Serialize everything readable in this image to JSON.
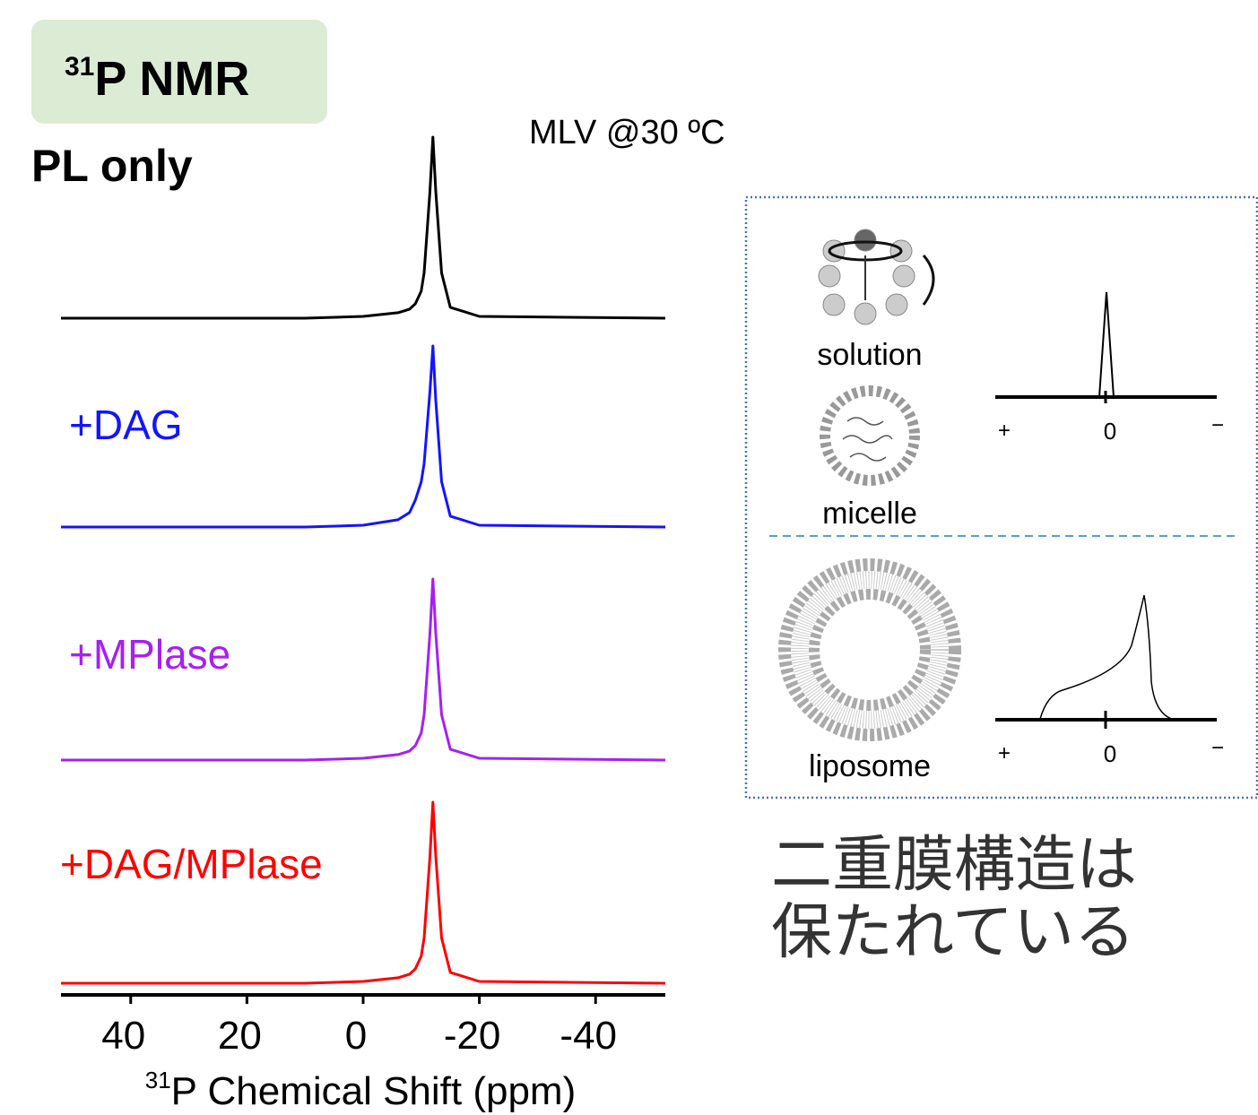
{
  "header": {
    "badge_sup": "31",
    "badge_text": "P NMR",
    "condition": "MLV @30 ºC"
  },
  "chart_data": {
    "type": "line",
    "x": [
      52,
      10,
      0,
      -6,
      -8,
      -9,
      -10,
      -10.5,
      -11.5,
      -12,
      -12.5,
      -13.5,
      -15,
      -20,
      -52
    ],
    "xlim": [
      52,
      -52
    ],
    "xticks": [
      40,
      20,
      0,
      -20,
      -40
    ],
    "xlabel_sup": "31",
    "xlabel": "P Chemical Shift (ppm)",
    "series": [
      {
        "name": "PL only",
        "color": "#000000",
        "values": [
          0,
          0,
          0.01,
          0.03,
          0.05,
          0.08,
          0.15,
          0.25,
          0.7,
          1,
          0.7,
          0.25,
          0.06,
          0.01,
          0
        ]
      },
      {
        "name": "+DAG",
        "color": "#1414ff",
        "values": [
          0,
          0,
          0.01,
          0.04,
          0.08,
          0.15,
          0.25,
          0.35,
          0.75,
          1,
          0.7,
          0.25,
          0.06,
          0.01,
          0
        ]
      },
      {
        "name": "+MPlase",
        "color": "#a620f0",
        "values": [
          0,
          0,
          0.01,
          0.03,
          0.05,
          0.08,
          0.15,
          0.25,
          0.7,
          1,
          0.7,
          0.25,
          0.06,
          0.01,
          0
        ]
      },
      {
        "name": "+DAG/MPlase",
        "color": "#ff0000",
        "values": [
          0,
          0,
          0.01,
          0.03,
          0.05,
          0.08,
          0.15,
          0.25,
          0.7,
          1,
          0.7,
          0.25,
          0.06,
          0.01,
          0
        ]
      }
    ]
  },
  "panel": {
    "solution": "solution",
    "micelle": "micelle",
    "liposome": "liposome",
    "axis_top": [
      "+",
      "0",
      "−"
    ],
    "axis_bottom": [
      "+",
      "0",
      "−"
    ]
  },
  "conclusion": [
    "二重膜構造は",
    "保たれている"
  ]
}
